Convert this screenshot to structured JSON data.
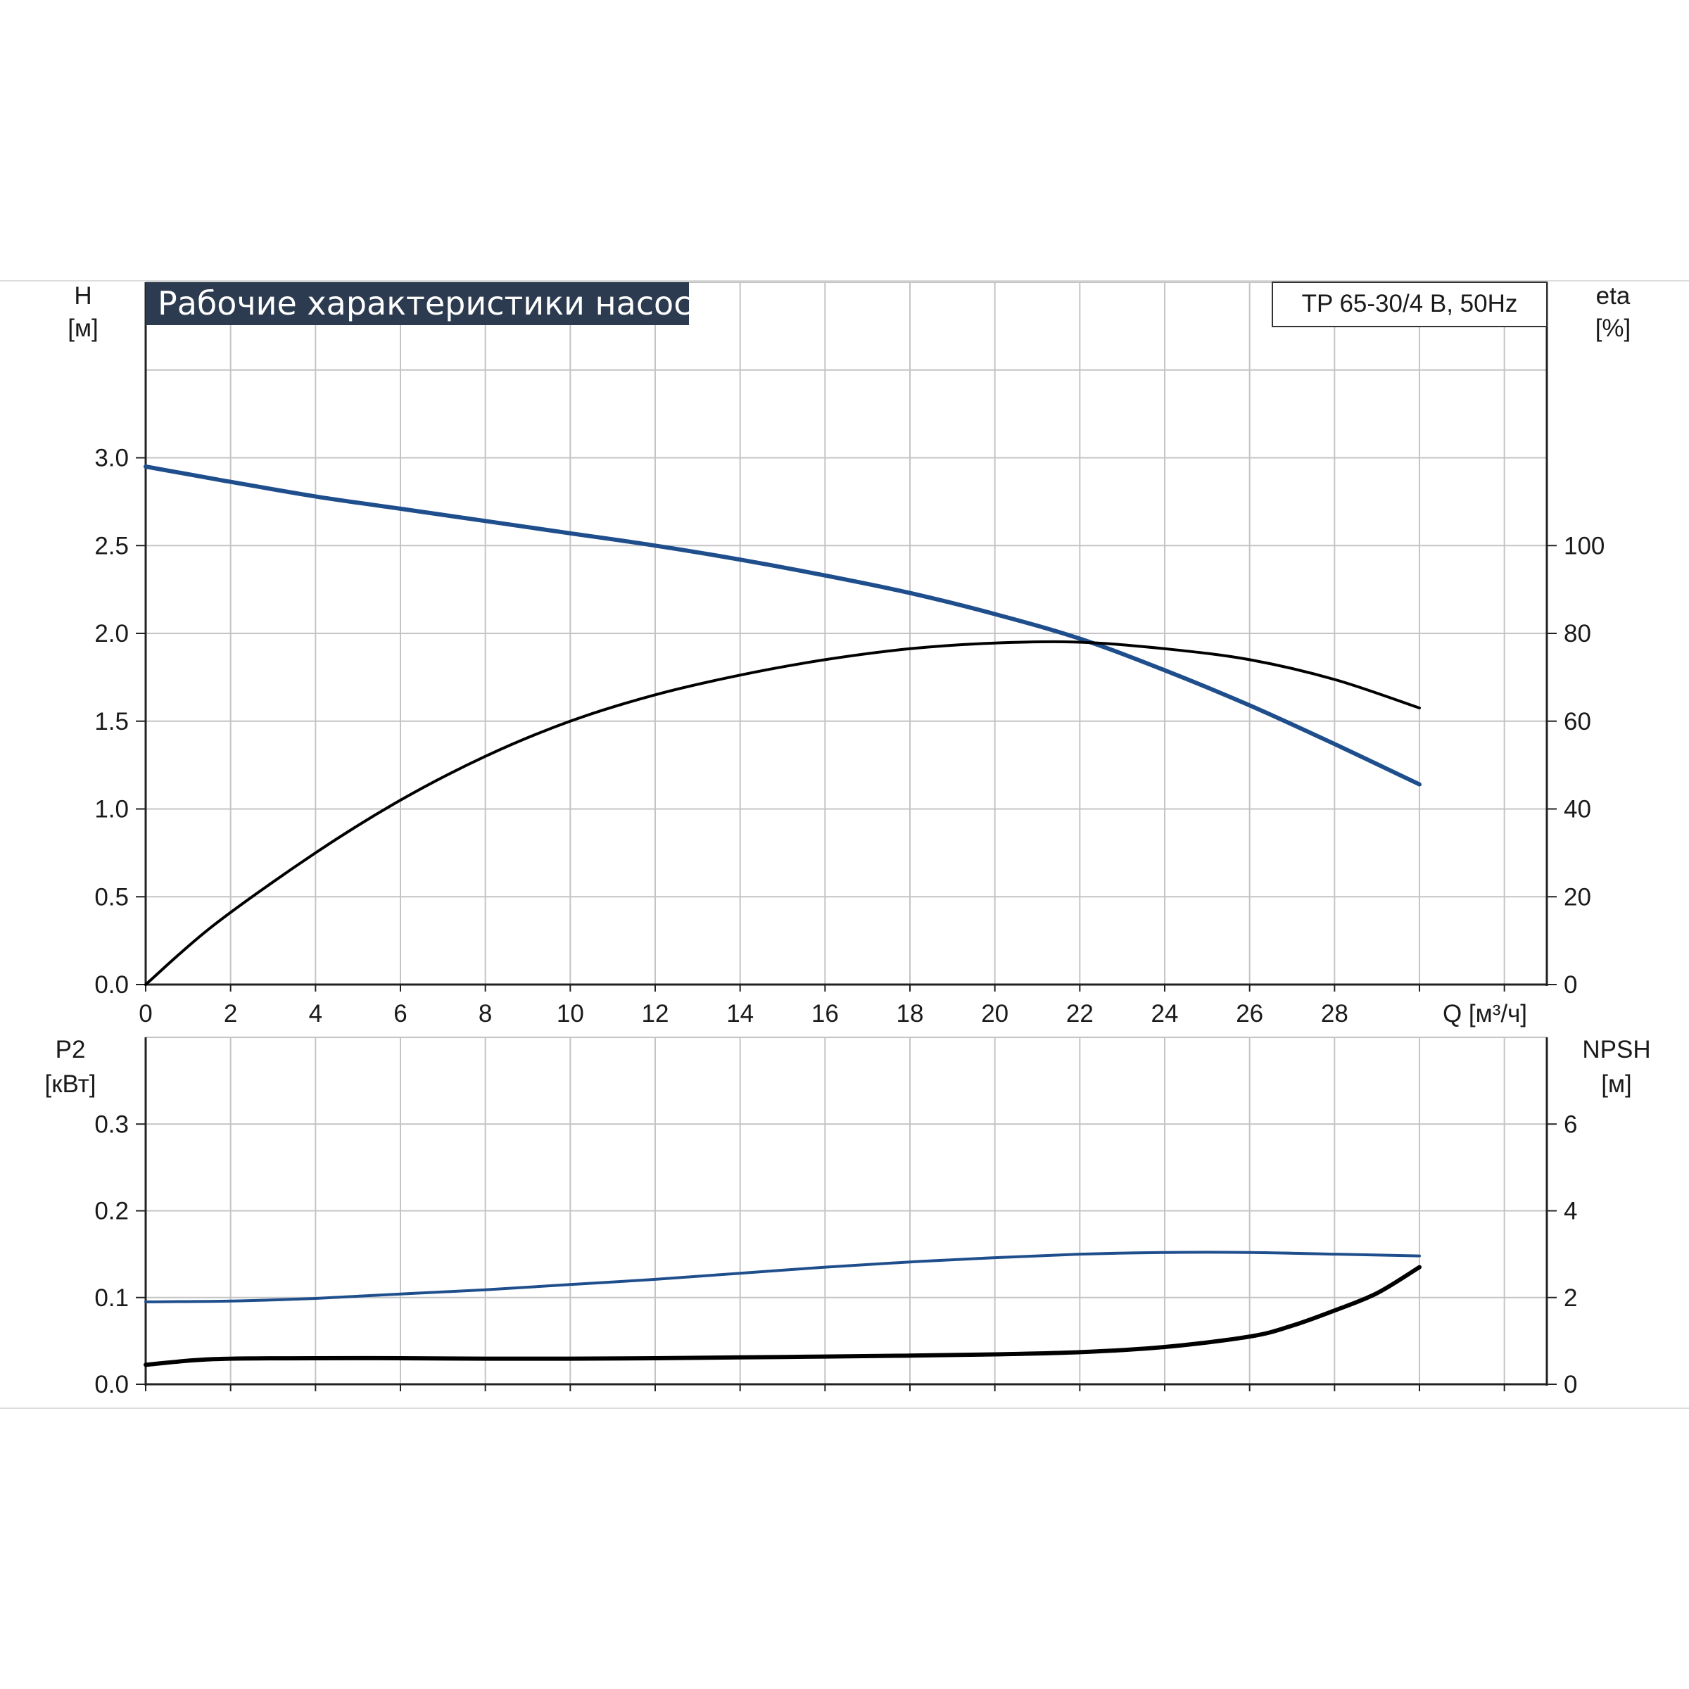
{
  "title": "Рабочие характеристики насоса",
  "model": "TP 65-30/4 B, 50Hz",
  "colors": {
    "blue": "#1f4e8c",
    "black": "#000000",
    "grid": "#c4c4c4",
    "title_bg": "#2c3b4f"
  },
  "chart_data": [
    {
      "type": "line",
      "panel": "top",
      "x_axis": {
        "label": "Q [м³/ч]",
        "ticks": [
          0,
          2,
          4,
          6,
          8,
          10,
          12,
          14,
          16,
          18,
          20,
          22,
          24,
          26,
          28
        ],
        "range": [
          0,
          33
        ]
      },
      "y_left": {
        "label_line1": "H",
        "label_line2": "[м]",
        "ticks": [
          "0.0",
          "0.5",
          "1.0",
          "1.5",
          "2.0",
          "2.5",
          "3.0"
        ],
        "range": [
          0,
          4
        ]
      },
      "y_right": {
        "label_line1": "eta",
        "label_line2": "[%]",
        "ticks": [
          "0",
          "20",
          "40",
          "60",
          "80",
          "100"
        ],
        "range": [
          0,
          160
        ]
      },
      "grid": true,
      "series": [
        {
          "axis": "left",
          "color": "#1f4e8c",
          "x": [
            0,
            1.6,
            4,
            6,
            8,
            10,
            12,
            14,
            16,
            18,
            20,
            22,
            24,
            26,
            28,
            30
          ],
          "y": [
            2.95,
            2.88,
            2.78,
            2.71,
            2.64,
            2.57,
            2.5,
            2.42,
            2.33,
            2.23,
            2.11,
            1.97,
            1.79,
            1.59,
            1.37,
            1.14
          ]
        },
        {
          "axis": "right",
          "color": "#000000",
          "x": [
            0,
            1.6,
            4,
            6,
            8,
            10,
            12,
            14,
            16,
            18,
            20,
            22,
            24,
            26,
            28,
            30
          ],
          "y": [
            0,
            13.5,
            30,
            42,
            52,
            60,
            66,
            70.5,
            74,
            76.5,
            77.8,
            78,
            76.5,
            74,
            69.5,
            63
          ]
        }
      ]
    },
    {
      "type": "line",
      "panel": "bottom",
      "x_axis": {
        "range": [
          0,
          33
        ]
      },
      "y_left": {
        "label_line1": "P2",
        "label_line2": "[кВт]",
        "ticks": [
          "0.0",
          "0.1",
          "0.2",
          "0.3"
        ],
        "range": [
          0,
          0.4
        ]
      },
      "y_right": {
        "label_line1": "NPSH",
        "label_line2": "[м]",
        "ticks": [
          "0",
          "2",
          "4",
          "6"
        ],
        "range": [
          0,
          8
        ]
      },
      "grid": true,
      "series": [
        {
          "axis": "left",
          "color": "#1f4e8c",
          "x": [
            0,
            2,
            4,
            6,
            8,
            10,
            12,
            14,
            16,
            18,
            20,
            22,
            24,
            26,
            28,
            30
          ],
          "y": [
            0.095,
            0.096,
            0.099,
            0.104,
            0.109,
            0.115,
            0.121,
            0.128,
            0.135,
            0.141,
            0.146,
            0.15,
            0.152,
            0.152,
            0.15,
            0.148
          ]
        },
        {
          "axis": "right",
          "color": "#000000",
          "x": [
            0,
            1.6,
            4,
            6,
            8,
            10,
            12,
            14,
            16,
            18,
            20,
            22,
            24,
            26,
            27,
            28,
            29,
            30
          ],
          "y": [
            0.45,
            0.58,
            0.6,
            0.6,
            0.59,
            0.59,
            0.6,
            0.62,
            0.64,
            0.66,
            0.69,
            0.74,
            0.86,
            1.1,
            1.35,
            1.7,
            2.1,
            2.7
          ]
        }
      ]
    }
  ]
}
